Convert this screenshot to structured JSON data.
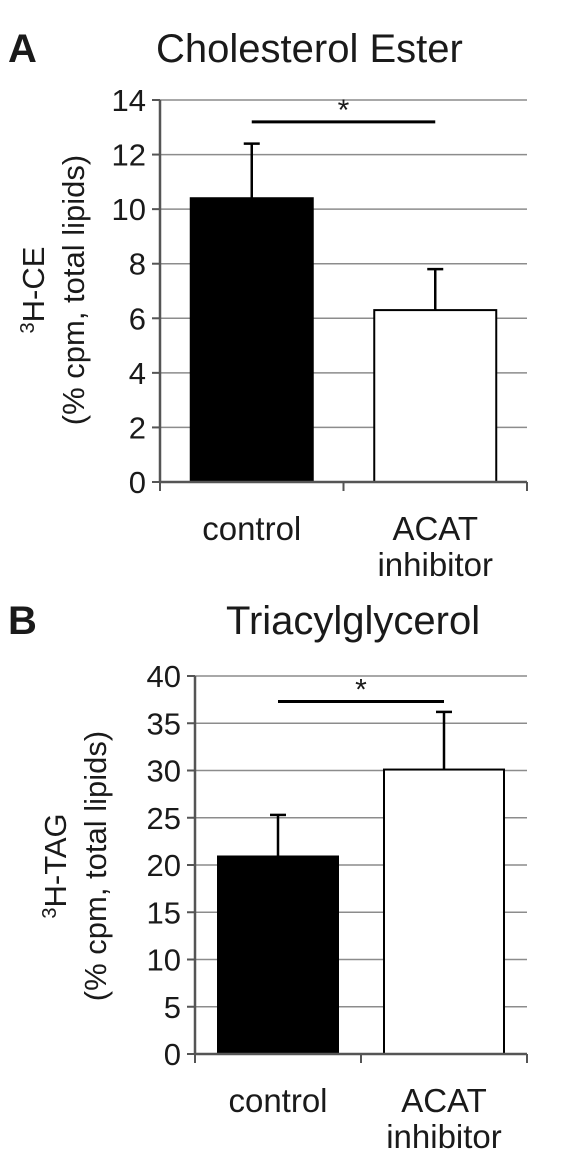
{
  "chart_data": [
    {
      "type": "bar",
      "panel_label": "A",
      "title": "Cholesterol Ester",
      "ylabel_superscript": "3",
      "ylabel_line1": "H-CE",
      "ylabel_line2": "(% cpm, total lipids)",
      "categories": [
        {
          "line1": "control",
          "line2": ""
        },
        {
          "line1": "ACAT",
          "line2": "inhibitor"
        }
      ],
      "values": [
        10.4,
        6.3
      ],
      "errors": [
        2.0,
        1.5
      ],
      "bar_colors": [
        "#000000",
        "#ffffff"
      ],
      "ylim": [
        0,
        14
      ],
      "yticks": [
        0,
        2,
        4,
        6,
        8,
        10,
        12,
        14
      ],
      "significance": {
        "label": "*",
        "y": 13.2
      },
      "grid": true
    },
    {
      "type": "bar",
      "panel_label": "B",
      "title": "Triacylglycerol",
      "ylabel_superscript": "3",
      "ylabel_line1": "H-TAG",
      "ylabel_line2": "(% cpm, total lipids)",
      "categories": [
        {
          "line1": "control",
          "line2": ""
        },
        {
          "line1": "ACAT",
          "line2": "inhibitor"
        }
      ],
      "values": [
        20.9,
        30.1
      ],
      "errors": [
        4.4,
        6.1
      ],
      "bar_colors": [
        "#000000",
        "#ffffff"
      ],
      "ylim": [
        0,
        40
      ],
      "yticks": [
        0,
        5,
        10,
        15,
        20,
        25,
        30,
        35,
        40
      ],
      "significance": {
        "label": "*",
        "y": 37.3
      },
      "grid": true
    }
  ]
}
